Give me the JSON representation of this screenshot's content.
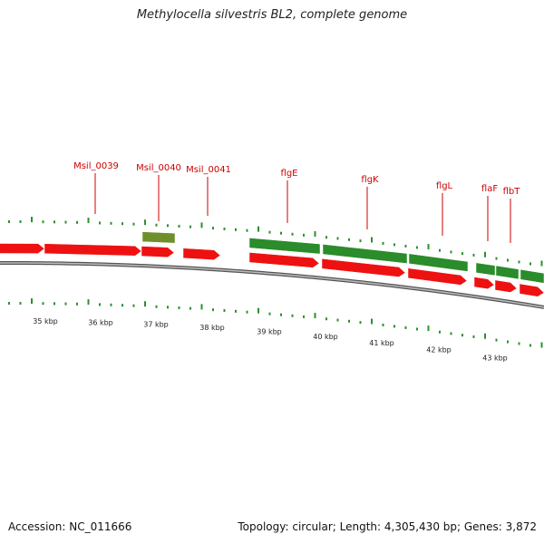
{
  "title": "Methylocella silvestris BL2, complete genome",
  "footer": {
    "accession": "Accession: NC_011666",
    "summary": "Topology: circular; Length: 4,305,430 bp; Genes: 3,872"
  },
  "colors": {
    "forward_gene": "#ee1111",
    "reverse_gene": "#2a8c2a",
    "pseudo_gene": "#6f8f2a",
    "label": "#cc0000",
    "tick": "#2f8f2f",
    "axis": "#777777"
  },
  "map": {
    "scale_labels": [
      "35 kbp",
      "36 kbp",
      "37 kbp",
      "38 kbp",
      "39 kbp",
      "40 kbp",
      "41 kbp",
      "42 kbp",
      "43 kbp"
    ],
    "gene_labels": [
      {
        "text": "Msil_0039"
      },
      {
        "text": "Msil_0040"
      },
      {
        "text": "Msil_0041"
      },
      {
        "text": "flgE"
      },
      {
        "text": "flgK"
      },
      {
        "text": "flgL"
      },
      {
        "text": "flaF"
      },
      {
        "text": "flbT"
      }
    ]
  }
}
